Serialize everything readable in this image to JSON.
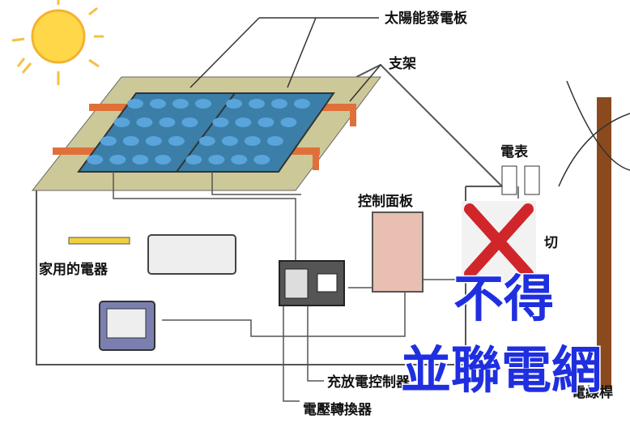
{
  "labels": {
    "solar_panel": "太陽能發電板",
    "bracket": "支架",
    "meter": "電表",
    "control_panel": "控制面板",
    "appliances": "家用的電器",
    "charge_controller": "充放電控制器",
    "inverter": "電壓轉換器",
    "switch": "切",
    "pole": "電線桿"
  },
  "overlay": {
    "line1": "不得",
    "line2": "並聯電網"
  }
}
